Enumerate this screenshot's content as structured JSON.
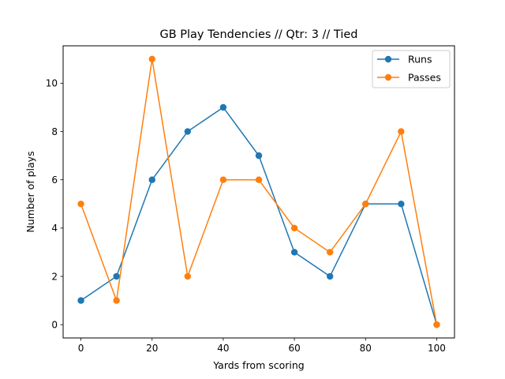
{
  "chart_data": {
    "type": "line",
    "title": "GB Play Tendencies // Qtr: 3 // Tied",
    "xlabel": "Yards from scoring",
    "ylabel": "Number of plays",
    "x": [
      0,
      10,
      20,
      30,
      40,
      50,
      60,
      70,
      80,
      90,
      100
    ],
    "xlim": [
      -5,
      105
    ],
    "ylim": [
      -0.55,
      11.55
    ],
    "xticks": [
      0,
      20,
      40,
      60,
      80,
      100
    ],
    "yticks": [
      0,
      2,
      4,
      6,
      8,
      10
    ],
    "grid": false,
    "legend_position": "top-right",
    "series": [
      {
        "name": "Runs",
        "color": "#1f77b4",
        "marker": "circle",
        "values": [
          1,
          2,
          6,
          8,
          9,
          7,
          3,
          2,
          5,
          5,
          0
        ]
      },
      {
        "name": "Passes",
        "color": "#ff7f0e",
        "marker": "circle",
        "values": [
          5,
          1,
          11,
          2,
          6,
          6,
          4,
          3,
          5,
          8,
          0
        ]
      }
    ]
  }
}
